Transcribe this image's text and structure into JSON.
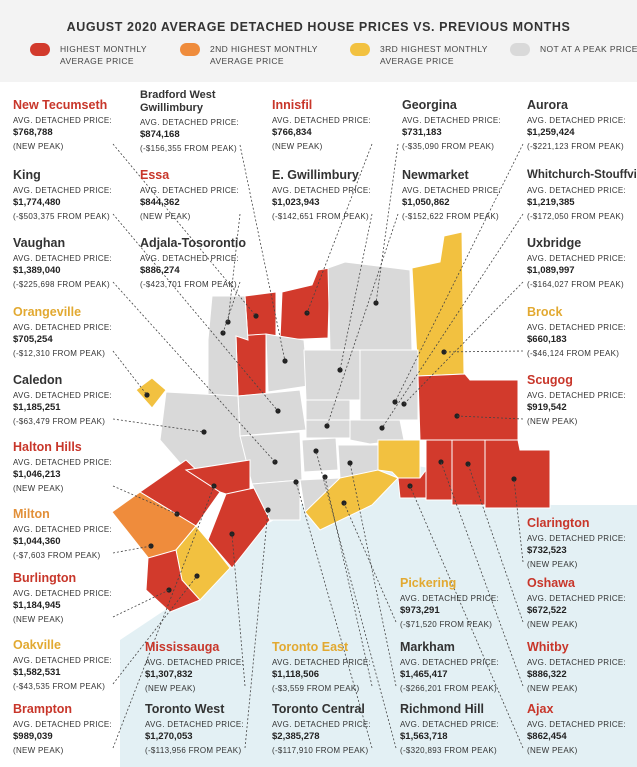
{
  "title": "AUGUST 2020 AVERAGE DETACHED HOUSE PRICES VS. PREVIOUS MONTHS",
  "colors": {
    "highest": "#d23a2c",
    "second": "#ef8c3c",
    "third": "#f2c140",
    "not_peak": "#d9d9d9",
    "lake": "#e3f0f4"
  },
  "legend": [
    {
      "label": "HIGHEST MONTHLY AVERAGE PRICE",
      "color": "#d23a2c"
    },
    {
      "label": "2ND HIGHEST MONTHLY AVERAGE PRICE",
      "color": "#ef8c3c"
    },
    {
      "label": "3RD HIGHEST MONTHLY AVERAGE PRICE",
      "color": "#f2c140"
    },
    {
      "label": "NOT AT A PEAK PRICE",
      "color": "#d9d9d9"
    }
  ],
  "price_label": "AVG. DETACHED PRICE:",
  "regions": [
    {
      "name": "New Tecumseth",
      "price": "$768,788",
      "note": "(NEW PEAK)",
      "rank": "hot"
    },
    {
      "name": "Bradford West Gwillimbury",
      "price": "$874,168",
      "note": "(-$156,355 FROM PEAK)",
      "rank": ""
    },
    {
      "name": "Innisfil",
      "price": "$766,834",
      "note": "(NEW PEAK)",
      "rank": "hot"
    },
    {
      "name": "Georgina",
      "price": "$731,183",
      "note": "(-$35,090 FROM PEAK)",
      "rank": ""
    },
    {
      "name": "Aurora",
      "price": "$1,259,424",
      "note": "(-$221,123 FROM PEAK)",
      "rank": ""
    },
    {
      "name": "King",
      "price": "$1,774,480",
      "note": "(-$503,375 FROM PEAK)",
      "rank": ""
    },
    {
      "name": "Essa",
      "price": "$844,362",
      "note": "(NEW PEAK)",
      "rank": "hot"
    },
    {
      "name": "E. Gwillimbury",
      "price": "$1,023,943",
      "note": "(-$142,651 FROM PEAK)",
      "rank": ""
    },
    {
      "name": "Newmarket",
      "price": "$1,050,862",
      "note": "(-$152,622 FROM PEAK)",
      "rank": ""
    },
    {
      "name": "Whitchurch-Stouffville",
      "price": "$1,219,385",
      "note": "(-$172,050 FROM PEAK)",
      "rank": ""
    },
    {
      "name": "Vaughan",
      "price": "$1,389,040",
      "note": "(-$225,698 FROM PEAK)",
      "rank": ""
    },
    {
      "name": "Adjala-Tosorontio",
      "price": "$886,274",
      "note": "(-$423,701 FROM PEAK)",
      "rank": ""
    },
    {
      "name": "Uxbridge",
      "price": "$1,089,997",
      "note": "(-$164,027 FROM PEAK)",
      "rank": ""
    },
    {
      "name": "Orangeville",
      "price": "$705,254",
      "note": "(-$12,310 FROM PEAK)",
      "rank": "yellow"
    },
    {
      "name": "Brock",
      "price": "$660,183",
      "note": "(-$46,124 FROM PEAK)",
      "rank": "yellow"
    },
    {
      "name": "Caledon",
      "price": "$1,185,251",
      "note": "(-$63,479 FROM PEAK)",
      "rank": ""
    },
    {
      "name": "Scugog",
      "price": "$919,542",
      "note": "(NEW PEAK)",
      "rank": "hot"
    },
    {
      "name": "Halton Hills",
      "price": "$1,046,213",
      "note": "(NEW PEAK)",
      "rank": "hot"
    },
    {
      "name": "Milton",
      "price": "$1,044,360",
      "note": "(-$7,603 FROM PEAK)",
      "rank": "orange"
    },
    {
      "name": "Clarington",
      "price": "$732,523",
      "note": "(NEW PEAK)",
      "rank": "hot"
    },
    {
      "name": "Burlington",
      "price": "$1,184,945",
      "note": "(NEW PEAK)",
      "rank": "hot"
    },
    {
      "name": "Pickering",
      "price": "$973,291",
      "note": "(-$71,520 FROM PEAK)",
      "rank": "yellow"
    },
    {
      "name": "Oshawa",
      "price": "$672,522",
      "note": "(NEW PEAK)",
      "rank": "hot"
    },
    {
      "name": "Oakville",
      "price": "$1,582,531",
      "note": "(-$43,535 FROM PEAK)",
      "rank": "yellow"
    },
    {
      "name": "Mississauga",
      "price": "$1,307,832",
      "note": "(NEW PEAK)",
      "rank": "hot"
    },
    {
      "name": "Toronto East",
      "price": "$1,118,506",
      "note": "(-$3,559 FROM PEAK)",
      "rank": "yellow"
    },
    {
      "name": "Markham",
      "price": "$1,465,417",
      "note": "(-$266,201 FROM PEAK)",
      "rank": ""
    },
    {
      "name": "Whitby",
      "price": "$886,322",
      "note": "(NEW PEAK)",
      "rank": "hot"
    },
    {
      "name": "Brampton",
      "price": "$989,039",
      "note": "(NEW PEAK)",
      "rank": "hot"
    },
    {
      "name": "Toronto West",
      "price": "$1,270,053",
      "note": "(-$113,956 FROM PEAK)",
      "rank": ""
    },
    {
      "name": "Toronto Central",
      "price": "$2,385,278",
      "note": "(-$117,910 FROM PEAK)",
      "rank": ""
    },
    {
      "name": "Richmond Hill",
      "price": "$1,563,718",
      "note": "(-$320,893 FROM PEAK)",
      "rank": ""
    },
    {
      "name": "Ajax",
      "price": "$862,454",
      "note": "(NEW PEAK)",
      "rank": "hot"
    }
  ]
}
